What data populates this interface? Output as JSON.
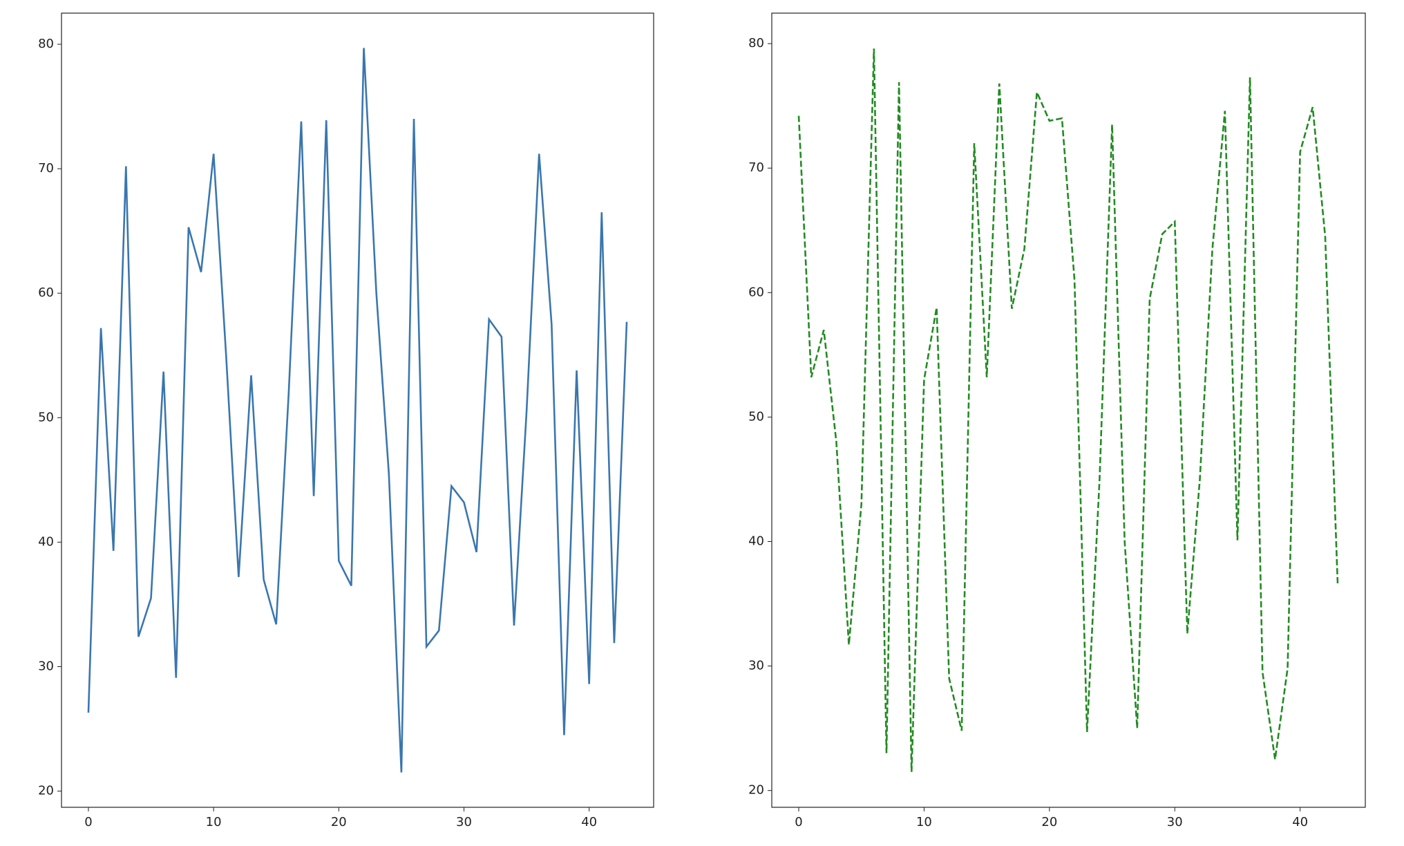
{
  "chart_data": [
    {
      "type": "line",
      "x": [
        0,
        1,
        2,
        3,
        4,
        5,
        6,
        7,
        8,
        9,
        10,
        11,
        12,
        13,
        14,
        15,
        16,
        17,
        18,
        19,
        20,
        21,
        22,
        23,
        24,
        25,
        26,
        27,
        28,
        29,
        30,
        31,
        32,
        33,
        34,
        35,
        36,
        37,
        38,
        39,
        40,
        41,
        42,
        43
      ],
      "values": [
        26.3,
        57.2,
        39.3,
        70.2,
        32.4,
        35.5,
        53.7,
        29.1,
        65.3,
        61.7,
        71.2,
        55.0,
        37.2,
        53.4,
        37.0,
        33.4,
        52.0,
        73.8,
        43.7,
        73.9,
        38.5,
        36.5,
        79.7,
        60.0,
        45.5,
        21.5,
        74.0,
        31.6,
        32.9,
        44.5,
        43.2,
        39.2,
        57.9,
        56.5,
        33.3,
        50.5,
        71.2,
        57.5,
        24.5,
        53.8,
        28.6,
        66.5,
        31.9,
        57.7
      ],
      "color": "#3a76ae",
      "linestyle": "solid",
      "xlim": [
        -2.15,
        45.15
      ],
      "ylim": [
        18.7,
        82.5
      ],
      "xticks": [
        0,
        10,
        20,
        30,
        40
      ],
      "yticks": [
        20,
        30,
        40,
        50,
        60,
        70,
        80
      ],
      "grid": false
    },
    {
      "type": "line",
      "x": [
        0,
        1,
        2,
        3,
        4,
        5,
        6,
        7,
        8,
        9,
        10,
        11,
        12,
        13,
        14,
        15,
        16,
        17,
        18,
        19,
        20,
        21,
        22,
        23,
        24,
        25,
        26,
        27,
        28,
        29,
        30,
        31,
        32,
        33,
        34,
        35,
        36,
        37,
        38,
        39,
        40,
        41,
        42,
        43
      ],
      "values": [
        74.2,
        53.2,
        57.0,
        48.0,
        31.7,
        43.0,
        79.6,
        23.0,
        76.9,
        21.5,
        53.0,
        58.8,
        29.0,
        24.8,
        72.0,
        53.2,
        76.8,
        58.7,
        63.5,
        76.1,
        73.8,
        74.0,
        61.0,
        24.7,
        45.0,
        73.5,
        40.0,
        25.0,
        59.5,
        64.7,
        65.7,
        32.6,
        45.0,
        63.5,
        74.6,
        40.1,
        77.3,
        29.5,
        22.5,
        29.8,
        71.3,
        74.9,
        64.5,
        36.5
      ],
      "color": "#228b22",
      "linestyle": "dashed",
      "xlim": [
        -2.15,
        45.2
      ],
      "ylim": [
        18.65,
        82.45
      ],
      "xticks": [
        0,
        10,
        20,
        30,
        40
      ],
      "yticks": [
        20,
        30,
        40,
        50,
        60,
        70,
        80
      ],
      "grid": false
    }
  ]
}
